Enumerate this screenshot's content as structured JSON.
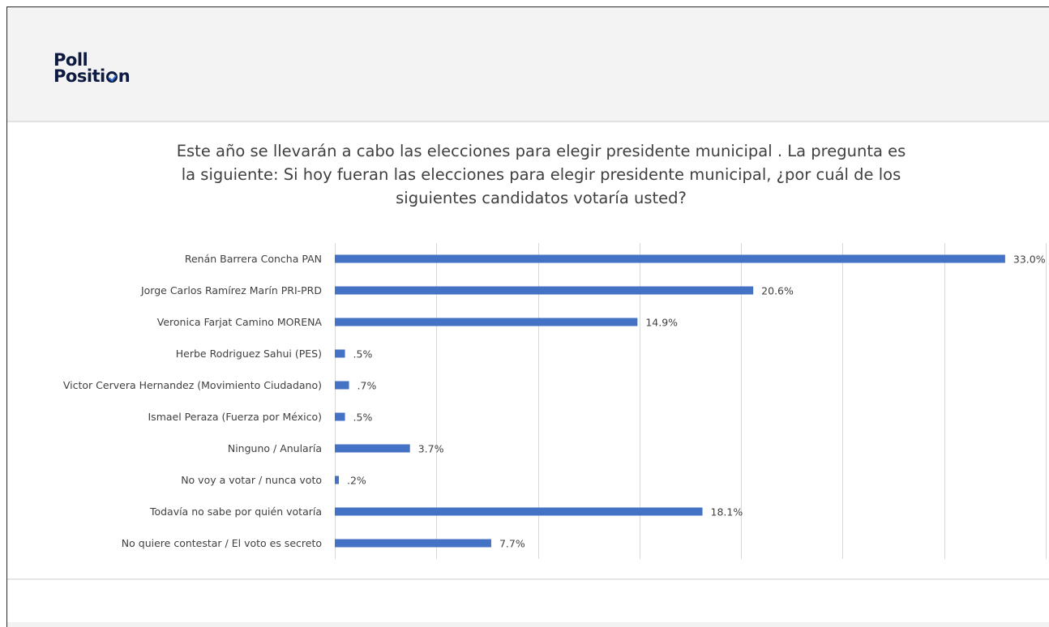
{
  "logo": {
    "line1": "Poll",
    "line2_start": "Positi",
    "line2_end": "n"
  },
  "chart_data": {
    "type": "bar",
    "orientation": "horizontal",
    "title": "Este año se llevarán a cabo las elecciones para elegir presidente municipal . La pregunta es la siguiente: Si hoy fueran las elecciones para elegir presidente municipal, ¿por cuál de los siguientes candidatos votaría  usted?",
    "title_lines": [
      "Este año se llevarán a cabo las elecciones para elegir presidente municipal . La pregunta es",
      "la siguiente: Si hoy fueran las elecciones para elegir presidente municipal, ¿por cuál de los",
      "siguientes candidatos votaría  usted?"
    ],
    "categories": [
      "Renán Barrera Concha PAN",
      "Jorge Carlos Ramírez Marín PRI-PRD",
      "Veronica Farjat Camino MORENA",
      "Herbe Rodriguez Sahui (PES)",
      "Victor Cervera Hernandez (Movimiento Ciudadano)",
      "Ismael Peraza (Fuerza por México)",
      "Ninguno / Anularía",
      "No voy a votar / nunca voto",
      "Todavía no sabe por quién votaría",
      "No quiere contestar / El voto es secreto"
    ],
    "values": [
      33.0,
      20.6,
      14.9,
      0.5,
      0.7,
      0.5,
      3.7,
      0.2,
      18.1,
      7.7
    ],
    "value_labels": [
      "33.0%",
      "20.6%",
      "14.9%",
      ".5%",
      ".7%",
      ".5%",
      "3.7%",
      ".2%",
      "18.1%",
      "7.7%"
    ],
    "xlim": [
      0,
      35
    ],
    "grid": true,
    "grid_step": 5,
    "bar_color": "#4472c4",
    "grid_color": "#d9d9d9"
  }
}
